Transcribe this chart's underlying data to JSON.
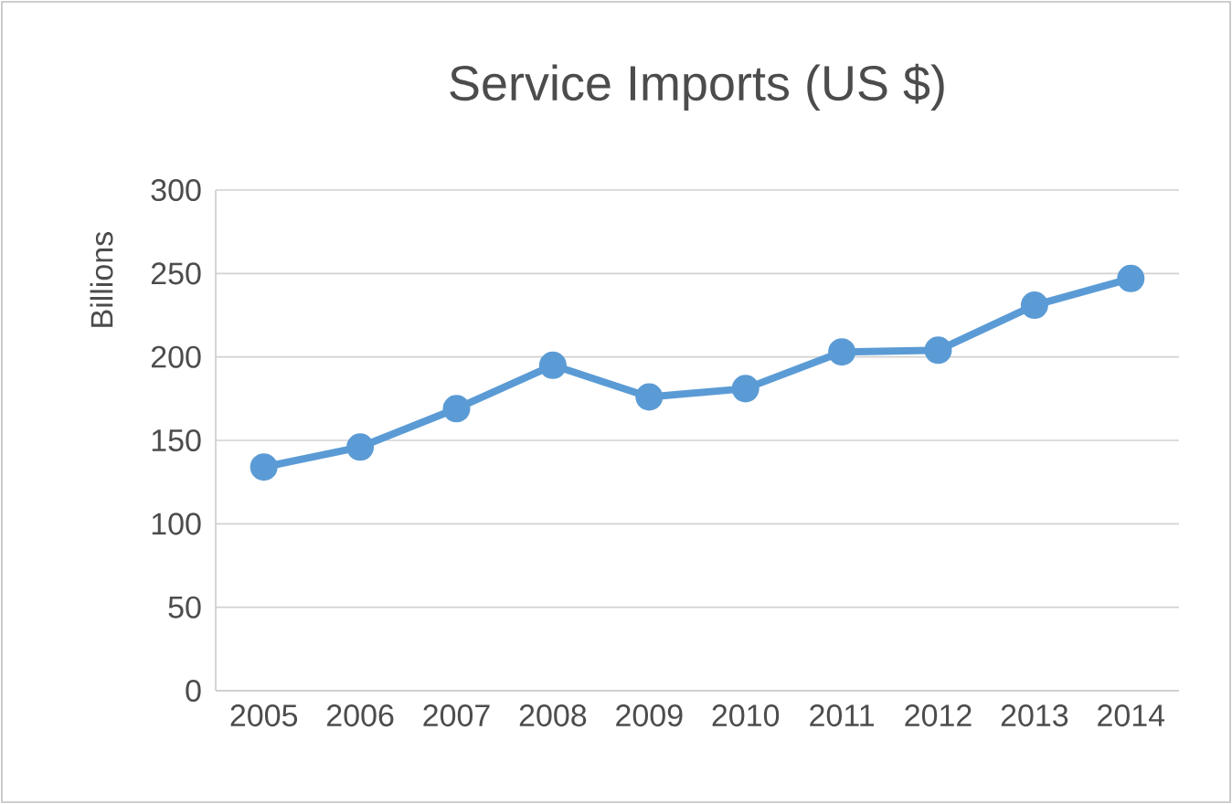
{
  "chart_data": {
    "type": "line",
    "title": "Service Imports (US $)",
    "ylabel": "Billions",
    "categories": [
      "2005",
      "2006",
      "2007",
      "2008",
      "2009",
      "2010",
      "2011",
      "2012",
      "2013",
      "2014"
    ],
    "series": [
      {
        "color": "#5b9bd5",
        "values": [
          134,
          146,
          169,
          195,
          176,
          181,
          203,
          204,
          231,
          247
        ]
      }
    ],
    "ylim": [
      0,
      300
    ],
    "yticks": [
      0,
      50,
      100,
      150,
      200,
      250,
      300
    ],
    "grid": "y",
    "marker": "circle",
    "line_style": "solid"
  }
}
